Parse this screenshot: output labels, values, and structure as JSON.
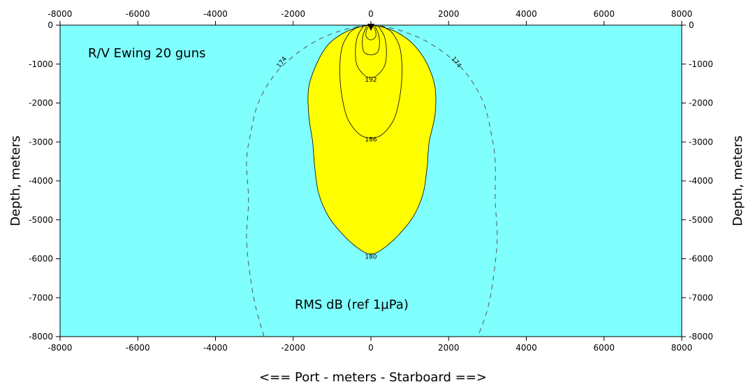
{
  "chart_data": {
    "type": "contour",
    "title": "",
    "annotations": {
      "vessel": "R/V Ewing 20 guns",
      "units": "RMS dB (ref 1µPa)"
    },
    "xlabel": "<==   Port  - meters - Starboard ==>",
    "ylabel_left": "Depth, meters",
    "ylabel_right": "Depth, meters",
    "xlim": [
      -8000,
      8000
    ],
    "ylim": [
      -8000,
      0
    ],
    "x_ticks": [
      -8000,
      -6000,
      -4000,
      -2000,
      0,
      2000,
      4000,
      6000,
      8000
    ],
    "y_ticks": [
      0,
      -1000,
      -2000,
      -3000,
      -4000,
      -5000,
      -6000,
      -7000,
      -8000
    ],
    "x_tick_labels": [
      "-8000",
      "-6000",
      "-4000",
      "-2000",
      "0",
      "2000",
      "4000",
      "6000",
      "8000"
    ],
    "y_tick_labels": [
      "0",
      "-1000",
      "-2000",
      "-3000",
      "-4000",
      "-5000",
      "-6000",
      "-7000",
      "-8000"
    ],
    "source_position": [
      0,
      0
    ],
    "colors": {
      "background": "#80ffff",
      "fill_above_180": "#ffff00",
      "contour_line": "#000000",
      "dashed_174": "#555555"
    },
    "contours": [
      {
        "level": 174,
        "label": "174",
        "style": "dashed",
        "label_positions": [
          [
            -2300,
            -950
          ],
          [
            2200,
            -950
          ]
        ],
        "points": [
          [
            -2750,
            -8000
          ],
          [
            -2950,
            -7300
          ],
          [
            -3100,
            -6500
          ],
          [
            -3200,
            -5500
          ],
          [
            -3150,
            -4500
          ],
          [
            -3200,
            -3500
          ],
          [
            -3100,
            -2800
          ],
          [
            -2900,
            -2000
          ],
          [
            -2500,
            -1300
          ],
          [
            -2000,
            -800
          ],
          [
            -1400,
            -400
          ],
          [
            -800,
            -150
          ],
          [
            -300,
            -30
          ],
          [
            0,
            0
          ],
          [
            300,
            -30
          ],
          [
            800,
            -150
          ],
          [
            1400,
            -400
          ],
          [
            2000,
            -800
          ],
          [
            2500,
            -1300
          ],
          [
            2900,
            -2000
          ],
          [
            3100,
            -2800
          ],
          [
            3200,
            -3500
          ],
          [
            3200,
            -4500
          ],
          [
            3250,
            -5500
          ],
          [
            3150,
            -6500
          ],
          [
            3000,
            -7300
          ],
          [
            2750,
            -8000
          ]
        ]
      },
      {
        "level": 180,
        "label": "180",
        "style": "solid",
        "filled": true,
        "label_positions": [
          [
            0,
            -5950
          ]
        ],
        "points": [
          [
            0,
            0
          ],
          [
            -300,
            -50
          ],
          [
            -700,
            -200
          ],
          [
            -1100,
            -500
          ],
          [
            -1400,
            -1000
          ],
          [
            -1600,
            -1600
          ],
          [
            -1600,
            -2300
          ],
          [
            -1500,
            -3000
          ],
          [
            -1450,
            -3600
          ],
          [
            -1350,
            -4300
          ],
          [
            -1100,
            -4900
          ],
          [
            -700,
            -5400
          ],
          [
            -300,
            -5750
          ],
          [
            0,
            -5880
          ],
          [
            300,
            -5750
          ],
          [
            700,
            -5400
          ],
          [
            1100,
            -4900
          ],
          [
            1350,
            -4300
          ],
          [
            1450,
            -3600
          ],
          [
            1500,
            -3000
          ],
          [
            1650,
            -2300
          ],
          [
            1650,
            -1600
          ],
          [
            1450,
            -1000
          ],
          [
            1100,
            -500
          ],
          [
            700,
            -200
          ],
          [
            300,
            -50
          ],
          [
            0,
            0
          ]
        ]
      },
      {
        "level": 186,
        "label": "186",
        "style": "solid",
        "label_positions": [
          [
            0,
            -2930
          ]
        ],
        "points": [
          [
            -300,
            -30
          ],
          [
            -550,
            -200
          ],
          [
            -750,
            -600
          ],
          [
            -800,
            -1200
          ],
          [
            -750,
            -1800
          ],
          [
            -600,
            -2400
          ],
          [
            -300,
            -2800
          ],
          [
            0,
            -2900
          ],
          [
            300,
            -2800
          ],
          [
            600,
            -2400
          ],
          [
            750,
            -1800
          ],
          [
            800,
            -1200
          ],
          [
            750,
            -600
          ],
          [
            550,
            -200
          ],
          [
            300,
            -30
          ]
        ]
      },
      {
        "level": 192,
        "label": "192",
        "style": "solid",
        "label_positions": [
          [
            0,
            -1400
          ]
        ],
        "points": [
          [
            -200,
            -40
          ],
          [
            -350,
            -300
          ],
          [
            -400,
            -700
          ],
          [
            -350,
            -1050
          ],
          [
            -150,
            -1300
          ],
          [
            0,
            -1340
          ],
          [
            150,
            -1300
          ],
          [
            350,
            -1050
          ],
          [
            400,
            -700
          ],
          [
            350,
            -300
          ],
          [
            200,
            -40
          ]
        ]
      },
      {
        "level": 198,
        "label": "",
        "style": "solid",
        "label_positions": [],
        "points": [
          [
            -110,
            -30
          ],
          [
            -200,
            -250
          ],
          [
            -220,
            -500
          ],
          [
            -170,
            -700
          ],
          [
            0,
            -760
          ],
          [
            170,
            -700
          ],
          [
            220,
            -500
          ],
          [
            200,
            -250
          ],
          [
            110,
            -30
          ]
        ]
      },
      {
        "level": 204,
        "label": "",
        "style": "solid",
        "label_positions": [],
        "points": [
          [
            -60,
            -20
          ],
          [
            -120,
            -150
          ],
          [
            -120,
            -300
          ],
          [
            0,
            -380
          ],
          [
            120,
            -300
          ],
          [
            120,
            -150
          ],
          [
            60,
            -20
          ]
        ]
      }
    ]
  }
}
